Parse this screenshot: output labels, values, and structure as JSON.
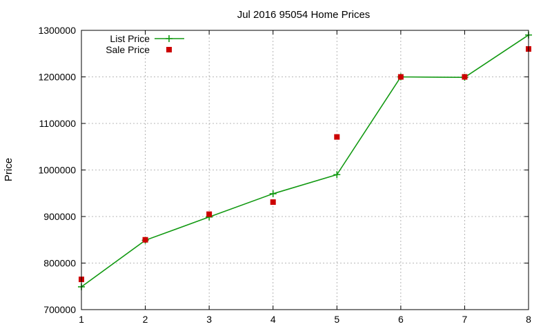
{
  "chart_data": {
    "type": "line",
    "title": "Jul 2016 95054 Home Prices",
    "xlabel": "",
    "ylabel": "Price",
    "xlim": [
      1,
      8
    ],
    "ylim": [
      700000,
      1300000
    ],
    "x_ticks": [
      1,
      2,
      3,
      4,
      5,
      6,
      7,
      8
    ],
    "y_ticks": [
      700000,
      800000,
      900000,
      1000000,
      1100000,
      1200000,
      1300000
    ],
    "grid": true,
    "legend_position": "top-left",
    "series": [
      {
        "name": "List Price",
        "style": "line-with-plus-markers",
        "color": "#119911",
        "x": [
          1,
          2,
          3,
          4,
          5,
          6,
          7,
          8
        ],
        "values": [
          749000,
          849000,
          899000,
          949000,
          990000,
          1200000,
          1199000,
          1290000
        ]
      },
      {
        "name": "Sale Price",
        "style": "square-markers",
        "color": "#cc0000",
        "x": [
          1,
          2,
          3,
          4,
          5,
          6,
          7,
          8
        ],
        "values": [
          765000,
          850000,
          905000,
          931000,
          1071000,
          1200000,
          1200000,
          1260000
        ]
      }
    ]
  }
}
